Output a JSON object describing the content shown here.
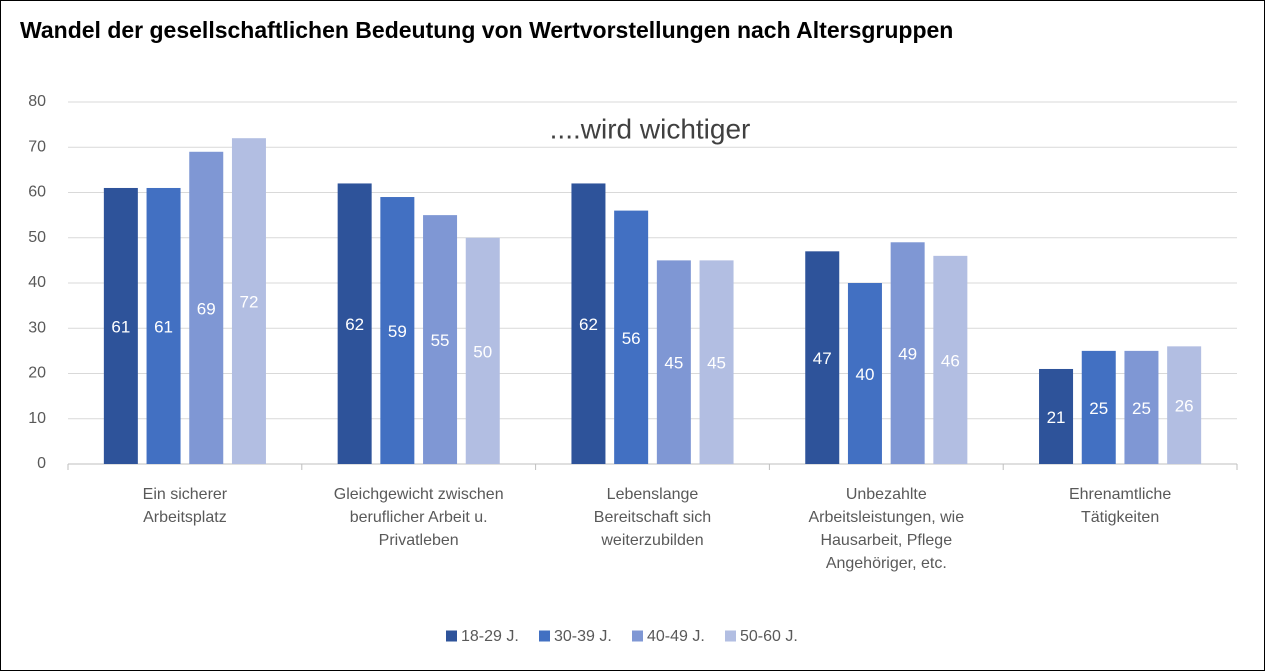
{
  "chart_data": {
    "type": "bar",
    "title": "Wandel der gesellschaftlichen Bedeutung von Wertvorstellungen nach Altersgruppen",
    "annotation": "....wird wichtiger",
    "categories": [
      "Ein sicherer\nArbeitsplatz",
      "Gleichgewicht zwischen\nberuflicher Arbeit u.\nPrivatleben",
      "Lebenslange\nBereitschaft sich\nweiterzubilden",
      "Unbezahlte\nArbeitsleistungen, wie\nHausarbeit, Pflege\nAngehöriger, etc.",
      "Ehrenamtliche\nTätigkeiten"
    ],
    "series": [
      {
        "name": "18-29 J.",
        "color": "#2e539a",
        "values": [
          61,
          62,
          62,
          47,
          21
        ]
      },
      {
        "name": "30-39 J.",
        "color": "#4270c2",
        "values": [
          61,
          59,
          56,
          40,
          25
        ]
      },
      {
        "name": "40-49 J.",
        "color": "#7f97d4",
        "values": [
          69,
          55,
          45,
          49,
          25
        ]
      },
      {
        "name": "50-60 J.",
        "color": "#b2bee2",
        "values": [
          72,
          50,
          45,
          46,
          26
        ]
      }
    ],
    "ylim": [
      0,
      80
    ],
    "yticks": [
      0,
      10,
      20,
      30,
      40,
      50,
      60,
      70,
      80
    ],
    "grid": true,
    "legend": "bottom"
  }
}
